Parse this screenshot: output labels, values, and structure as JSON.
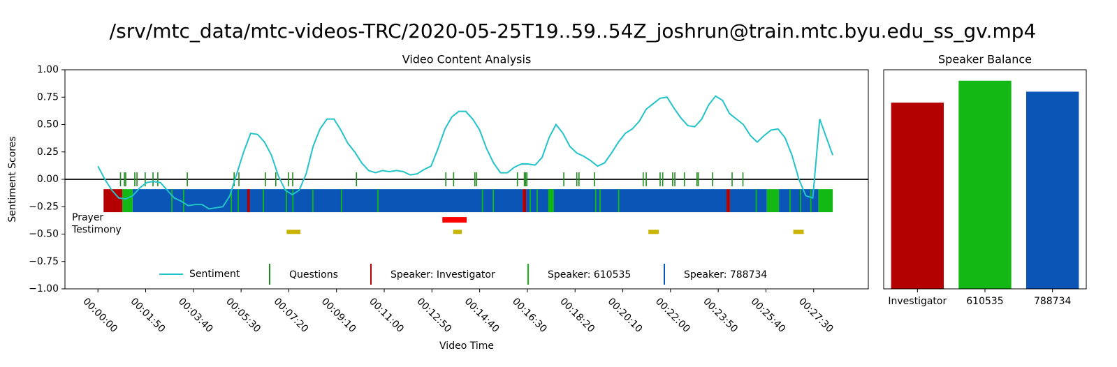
{
  "title": "/srv/mtc_data/mtc-videos-TRC/2020-05-25T19..59..54Z_joshrun@train.mtc.byu.edu_ss_gv.mp4",
  "chart_data": [
    {
      "type": "timeline",
      "title": "Video Content Analysis",
      "x_label": "Video Time",
      "y_label": "Sentiment Scores",
      "xlim": [
        -76,
        1776
      ],
      "ylim": [
        -1,
        1
      ],
      "xticks": [
        {
          "value": 0,
          "label": "00:00:00"
        },
        {
          "value": 110,
          "label": "00:01:50"
        },
        {
          "value": 220,
          "label": "00:03:40"
        },
        {
          "value": 330,
          "label": "00:05:30"
        },
        {
          "value": 440,
          "label": "00:07:20"
        },
        {
          "value": 550,
          "label": "00:09:10"
        },
        {
          "value": 660,
          "label": "00:11:00"
        },
        {
          "value": 770,
          "label": "00:12:50"
        },
        {
          "value": 880,
          "label": "00:14:40"
        },
        {
          "value": 990,
          "label": "00:16:30"
        },
        {
          "value": 1100,
          "label": "00:18:20"
        },
        {
          "value": 1210,
          "label": "00:20:10"
        },
        {
          "value": 1320,
          "label": "00:22:00"
        },
        {
          "value": 1430,
          "label": "00:23:50"
        },
        {
          "value": 1540,
          "label": "00:25:40"
        },
        {
          "value": 1650,
          "label": "00:27:30"
        }
      ],
      "yticks": [
        {
          "value": 1,
          "label": "1.00"
        },
        {
          "value": 0.75,
          "label": "0.75"
        },
        {
          "value": 0.5,
          "label": "0.50"
        },
        {
          "value": 0.25,
          "label": "0.25"
        },
        {
          "value": 0,
          "label": "0.00"
        },
        {
          "value": -0.25,
          "label": "−0.25"
        },
        {
          "value": -0.5,
          "label": "−0.50"
        },
        {
          "value": -0.75,
          "label": "−0.75"
        },
        {
          "value": -1,
          "label": "−1.00"
        }
      ],
      "hline": 0,
      "legend": "lower center",
      "series": [
        {
          "name": "Sentiment",
          "color": "#22c3c8",
          "x": [
            0,
            16,
            32,
            48,
            64,
            80,
            96,
            112,
            128,
            144,
            160,
            176,
            192,
            208,
            224,
            240,
            256,
            272,
            288,
            304,
            320,
            336,
            352,
            368,
            384,
            400,
            416,
            432,
            448,
            464,
            480,
            496,
            512,
            528,
            544,
            560,
            576,
            592,
            608,
            624,
            640,
            656,
            672,
            688,
            704,
            720,
            736,
            752,
            768,
            784,
            800,
            816,
            832,
            848,
            864,
            880,
            896,
            912,
            928,
            944,
            960,
            976,
            992,
            1008,
            1024,
            1040,
            1056,
            1072,
            1088,
            1104,
            1120,
            1136,
            1152,
            1168,
            1184,
            1200,
            1216,
            1232,
            1248,
            1264,
            1280,
            1296,
            1312,
            1328,
            1344,
            1360,
            1376,
            1392,
            1408,
            1424,
            1440,
            1456,
            1472,
            1488,
            1504,
            1520,
            1536,
            1552,
            1568,
            1584,
            1600,
            1616,
            1632,
            1648,
            1664,
            1694
          ],
          "values": [
            0.12,
            0.0,
            -0.1,
            -0.17,
            -0.18,
            -0.15,
            -0.08,
            -0.03,
            -0.02,
            -0.03,
            -0.1,
            -0.17,
            -0.2,
            -0.24,
            -0.23,
            -0.23,
            -0.27,
            -0.26,
            -0.25,
            -0.15,
            0.05,
            0.25,
            0.42,
            0.41,
            0.34,
            0.22,
            0.03,
            -0.1,
            -0.14,
            -0.1,
            0.05,
            0.3,
            0.46,
            0.55,
            0.55,
            0.45,
            0.33,
            0.25,
            0.15,
            0.08,
            0.06,
            0.08,
            0.07,
            0.08,
            0.07,
            0.04,
            0.05,
            0.09,
            0.12,
            0.28,
            0.46,
            0.57,
            0.62,
            0.62,
            0.55,
            0.45,
            0.28,
            0.15,
            0.06,
            0.06,
            0.11,
            0.14,
            0.14,
            0.13,
            0.2,
            0.38,
            0.5,
            0.42,
            0.3,
            0.24,
            0.21,
            0.17,
            0.12,
            0.15,
            0.24,
            0.34,
            0.42,
            0.46,
            0.53,
            0.64,
            0.69,
            0.74,
            0.75,
            0.65,
            0.56,
            0.49,
            0.48,
            0.55,
            0.68,
            0.76,
            0.72,
            0.6,
            0.55,
            0.5,
            0.4,
            0.34,
            0.4,
            0.45,
            0.46,
            0.38,
            0.22,
            0.0,
            -0.15,
            -0.17,
            0.55,
            0.22
          ]
        }
      ],
      "events": [
        {
          "name": "Questions",
          "color": "#1e8c1e",
          "x": [
            52,
            61,
            64,
            85,
            90,
            109,
            127,
            138,
            206,
            314,
            325,
            386,
            410,
            439,
            449,
            596,
            802,
            820,
            869,
            873,
            967,
            983,
            986,
            989,
            1074,
            1104,
            1109,
            1145,
            1257,
            1264,
            1296,
            1302,
            1325,
            1330,
            1352,
            1381,
            1384,
            1417,
            1462,
            1487
          ]
        }
      ],
      "band": [
        -0.3,
        -0.09
      ],
      "speakers": [
        {
          "name": "Speaker: Investigator",
          "color": "#b40000",
          "spans": [
            [
              13,
              56
            ],
            [
              344,
              350
            ],
            [
              979,
              987
            ],
            [
              1449,
              1457
            ]
          ]
        },
        {
          "name": "Speaker: 610535",
          "color": "#14b814",
          "spans": [
            [
              56,
              80
            ],
            [
              1038,
              1051
            ],
            [
              1542,
              1570
            ],
            [
              1661,
              1694
            ],
            [
              169,
              172
            ],
            [
              196,
              199
            ],
            [
              306,
              309
            ],
            [
              322,
              325
            ],
            [
              380,
              383
            ],
            [
              433,
              436
            ],
            [
              448,
              451
            ],
            [
              494,
              497
            ],
            [
              560,
              563
            ],
            [
              644,
              647
            ],
            [
              885,
              888
            ],
            [
              910,
              913
            ],
            [
              995,
              998
            ],
            [
              1011,
              1014
            ],
            [
              1146,
              1149
            ],
            [
              1156,
              1159
            ],
            [
              1199,
              1202
            ],
            [
              1516,
              1519
            ],
            [
              1594,
              1597
            ],
            [
              1618,
              1621
            ],
            [
              1642,
              1645
            ]
          ]
        },
        {
          "name": "Speaker: 788734",
          "color": "#0a55b5",
          "spans": [
            [
              80,
              979
            ],
            [
              987,
              1449
            ],
            [
              1457,
              1542
            ],
            [
              1570,
              1661
            ]
          ]
        }
      ],
      "segments": [
        {
          "name": "Prayer",
          "color": "#ff0000",
          "level": -0.37,
          "spans": [
            [
              794,
              850
            ]
          ]
        },
        {
          "name": "Testimony",
          "color": "#c8b400",
          "level": -0.48,
          "spans": [
            [
              435,
              467
            ],
            [
              819,
              839
            ],
            [
              1269,
              1293
            ],
            [
              1603,
              1627
            ]
          ]
        }
      ]
    },
    {
      "type": "bar",
      "title": "Speaker Balance",
      "categories": [
        "Investigator",
        "610535",
        "788734"
      ],
      "colors": [
        "#b40000",
        "#14b814",
        "#0a55b5"
      ],
      "values": [
        0.85,
        0.95,
        0.9
      ],
      "ylim": [
        0,
        1
      ]
    }
  ]
}
